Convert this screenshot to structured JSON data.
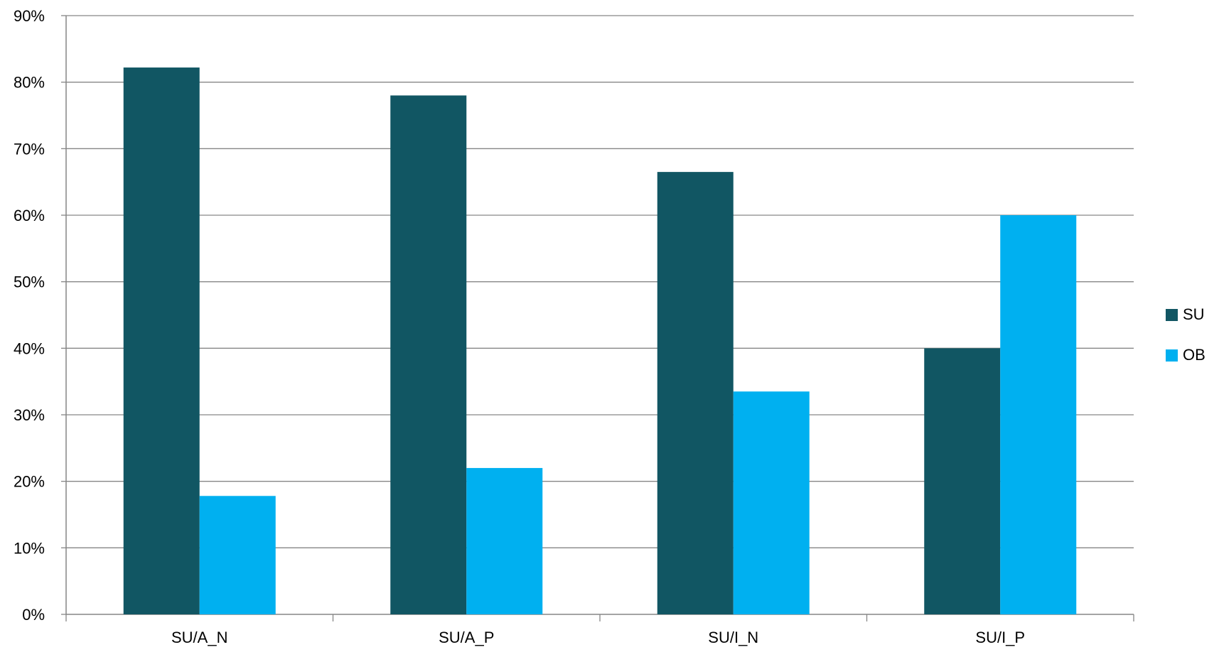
{
  "chart_data": {
    "type": "bar",
    "categories": [
      "SU/A_N",
      "SU/A_P",
      "SU/I_N",
      "SU/I_P"
    ],
    "series": [
      {
        "name": "SU",
        "values": [
          82.2,
          78.0,
          66.5,
          40.0
        ],
        "color": "#115663"
      },
      {
        "name": "OB",
        "values": [
          17.8,
          22.0,
          33.5,
          60.0
        ],
        "color": "#00b0f0"
      }
    ],
    "ylim": [
      0,
      90
    ],
    "yticks": [
      0,
      10,
      20,
      30,
      40,
      50,
      60,
      70,
      80,
      90
    ],
    "ytick_labels": [
      "0%",
      "10%",
      "20%",
      "30%",
      "40%",
      "50%",
      "60%",
      "70%",
      "80%",
      "90%"
    ],
    "grid": true,
    "gridline_color": "#868686",
    "legend_position": "right",
    "title": "",
    "xlabel": "",
    "ylabel": ""
  }
}
